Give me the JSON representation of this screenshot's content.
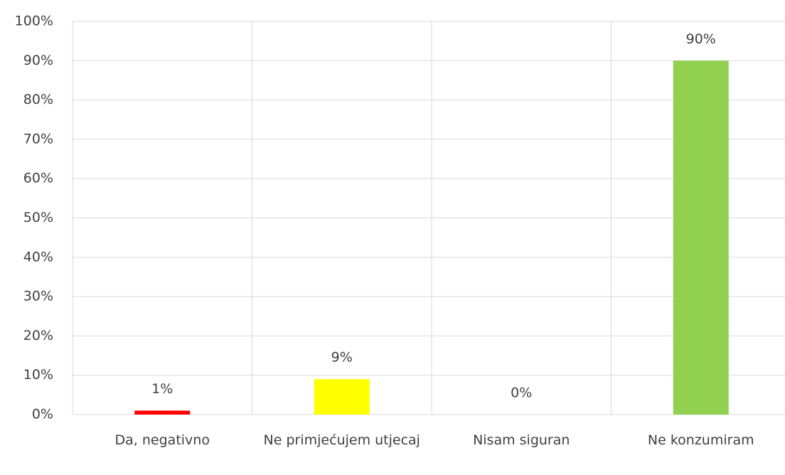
{
  "chart_data": {
    "type": "bar",
    "categories": [
      "Da, negativno",
      "Ne primjećujem utjecaj",
      "Nisam siguran",
      "Ne konzumiram"
    ],
    "values": [
      1,
      9,
      0,
      90
    ],
    "value_labels": [
      "1%",
      "9%",
      "0%",
      "90%"
    ],
    "colors": [
      "#ff0000",
      "#ffff00",
      "#a5a5a5",
      "#92d050"
    ],
    "ylim": [
      0,
      100
    ],
    "yticks": [
      {
        "value": 0,
        "label": "0%"
      },
      {
        "value": 10,
        "label": "10%"
      },
      {
        "value": 20,
        "label": "20%"
      },
      {
        "value": 30,
        "label": "30%"
      },
      {
        "value": 40,
        "label": "40%"
      },
      {
        "value": 50,
        "label": "50%"
      },
      {
        "value": 60,
        "label": "60%"
      },
      {
        "value": 70,
        "label": "70%"
      },
      {
        "value": 80,
        "label": "80%"
      },
      {
        "value": 90,
        "label": "90%"
      },
      {
        "value": 100,
        "label": "100%"
      }
    ],
    "grid": true
  }
}
